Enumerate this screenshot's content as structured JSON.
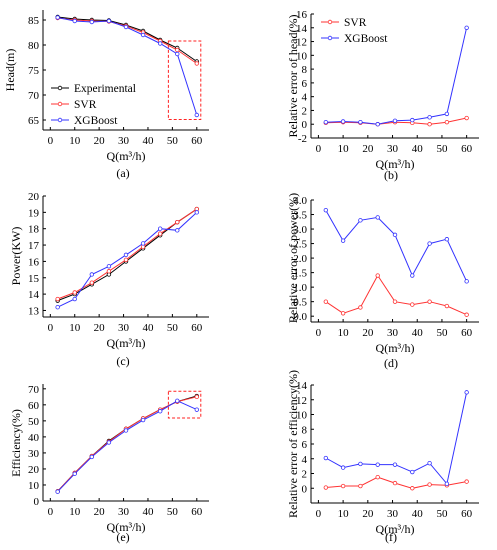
{
  "chart_data": [
    {
      "id": "a",
      "panel_label": "(a)",
      "type": "line",
      "xlabel": "Q(m³/h)",
      "ylabel": "Head(m)",
      "xlim": [
        -3,
        65
      ],
      "ylim": [
        63,
        87
      ],
      "xticks": [
        0,
        10,
        20,
        30,
        40,
        50,
        60
      ],
      "yticks": [
        65,
        70,
        75,
        80,
        85
      ],
      "legend": "lower-left",
      "zoom_box": {
        "x": [
          50,
          60
        ],
        "y": [
          65.5,
          80
        ]
      },
      "series": [
        {
          "name": "Experimental",
          "color": "#000000",
          "x": [
            3,
            10,
            17,
            24,
            31,
            38,
            45,
            52,
            60
          ],
          "y": [
            85.6,
            85.2,
            85.0,
            84.9,
            84.0,
            82.8,
            81.0,
            79.4,
            76.7
          ]
        },
        {
          "name": "SVR",
          "color": "#ff3333",
          "x": [
            3,
            10,
            17,
            24,
            31,
            38,
            45,
            52,
            60
          ],
          "y": [
            85.4,
            85.0,
            84.8,
            84.7,
            83.8,
            82.5,
            80.8,
            79.0,
            76.3
          ]
        },
        {
          "name": "XGBoost",
          "color": "#3333ff",
          "x": [
            3,
            10,
            17,
            24,
            31,
            38,
            45,
            52,
            60
          ],
          "y": [
            85.5,
            84.8,
            84.6,
            84.8,
            83.6,
            82.0,
            80.3,
            78.2,
            66.0
          ]
        }
      ]
    },
    {
      "id": "b",
      "panel_label": "(b)",
      "type": "line",
      "xlabel": "Q(m³/h)",
      "ylabel": "Relative error of head(%)",
      "xlim": [
        -3,
        65
      ],
      "ylim": [
        -2,
        16
      ],
      "xticks": [
        0,
        10,
        20,
        30,
        40,
        50,
        60
      ],
      "yticks": [
        -2,
        0,
        2,
        4,
        6,
        8,
        10,
        12,
        14,
        16
      ],
      "legend": "top-left",
      "series": [
        {
          "name": "SVR",
          "color": "#ff3333",
          "x": [
            3,
            10,
            17,
            24,
            31,
            38,
            45,
            52,
            60
          ],
          "y": [
            0.2,
            0.3,
            0.2,
            0.0,
            0.3,
            0.2,
            0.0,
            0.3,
            0.9
          ]
        },
        {
          "name": "XGBoost",
          "color": "#3333ff",
          "x": [
            3,
            10,
            17,
            24,
            31,
            38,
            45,
            52,
            60
          ],
          "y": [
            0.3,
            0.4,
            0.3,
            0.0,
            0.5,
            0.6,
            1.0,
            1.5,
            14.0
          ]
        }
      ]
    },
    {
      "id": "c",
      "panel_label": "(c)",
      "type": "line",
      "xlabel": "Q(m³/h)",
      "ylabel": "Power(KW)",
      "xlim": [
        -3,
        65
      ],
      "ylim": [
        12.6,
        20
      ],
      "xticks": [
        0,
        10,
        20,
        30,
        40,
        50,
        60
      ],
      "yticks": [
        13,
        14,
        15,
        16,
        17,
        18,
        19,
        20
      ],
      "series": [
        {
          "name": "Experimental",
          "color": "#000000",
          "x": [
            3,
            10,
            17,
            24,
            31,
            38,
            45,
            52,
            60
          ],
          "y": [
            13.6,
            14.0,
            14.6,
            15.2,
            16.0,
            16.8,
            17.6,
            18.4,
            19.2
          ]
        },
        {
          "name": "SVR",
          "color": "#ff3333",
          "x": [
            3,
            10,
            17,
            24,
            31,
            38,
            45,
            52,
            60
          ],
          "y": [
            13.7,
            14.1,
            14.7,
            15.4,
            16.1,
            16.9,
            17.7,
            18.4,
            19.2
          ]
        },
        {
          "name": "XGBoost",
          "color": "#3333ff",
          "x": [
            3,
            10,
            17,
            24,
            31,
            38,
            45,
            52,
            60
          ],
          "y": [
            13.2,
            13.7,
            15.2,
            15.7,
            16.4,
            17.1,
            18.0,
            17.9,
            19.0
          ]
        }
      ]
    },
    {
      "id": "d",
      "panel_label": "(d)",
      "type": "line",
      "xlabel": "Q(m³/h)",
      "ylabel": "Relative error of power(%)",
      "xlim": [
        -3,
        65
      ],
      "ylim": [
        -0.2,
        4.0
      ],
      "xticks": [
        0,
        10,
        20,
        30,
        40,
        50,
        60
      ],
      "yticks": [
        0.0,
        0.5,
        1.0,
        1.5,
        2.0,
        2.5,
        3.0,
        3.5,
        4.0
      ],
      "ytick_labels": [
        "0.0",
        "0.5",
        "1.0",
        "1.5",
        "2.0",
        "2.5",
        "3.0",
        "3.5",
        "4.0"
      ],
      "series": [
        {
          "name": "SVR",
          "color": "#ff3333",
          "x": [
            3,
            10,
            17,
            24,
            31,
            38,
            45,
            52,
            60
          ],
          "y": [
            0.5,
            0.1,
            0.3,
            1.4,
            0.5,
            0.4,
            0.5,
            0.35,
            0.05
          ]
        },
        {
          "name": "XGBoost",
          "color": "#3333ff",
          "x": [
            3,
            10,
            17,
            24,
            31,
            38,
            45,
            52,
            60
          ],
          "y": [
            3.65,
            2.6,
            3.3,
            3.4,
            2.8,
            1.4,
            2.5,
            2.65,
            1.2
          ]
        }
      ]
    },
    {
      "id": "e",
      "panel_label": "(e)",
      "type": "line",
      "xlabel": "Q(m³/h)",
      "ylabel": "Efficiency(%)",
      "xlim": [
        -3,
        65
      ],
      "ylim": [
        0,
        73
      ],
      "xticks": [
        0,
        10,
        20,
        30,
        40,
        50,
        60
      ],
      "yticks": [
        0,
        10,
        20,
        30,
        40,
        50,
        60,
        70
      ],
      "zoom_box": {
        "x": [
          50,
          60
        ],
        "y": [
          53,
          66
        ]
      },
      "series": [
        {
          "name": "Experimental",
          "color": "#000000",
          "x": [
            3,
            10,
            17,
            24,
            31,
            38,
            45,
            52,
            60
          ],
          "y": [
            6.0,
            17.5,
            28.0,
            37.5,
            45.0,
            51.5,
            57.0,
            62.0,
            65.5
          ]
        },
        {
          "name": "SVR",
          "color": "#ff3333",
          "x": [
            3,
            10,
            17,
            24,
            31,
            38,
            45,
            52,
            60
          ],
          "y": [
            6.0,
            17.5,
            28.0,
            37.0,
            45.0,
            51.5,
            57.0,
            62.0,
            65.0
          ]
        },
        {
          "name": "XGBoost",
          "color": "#3333ff",
          "x": [
            3,
            10,
            17,
            24,
            31,
            38,
            45,
            52,
            60
          ],
          "y": [
            5.8,
            17.0,
            27.5,
            36.5,
            44.0,
            50.5,
            56.0,
            62.5,
            57.0
          ]
        }
      ]
    },
    {
      "id": "f",
      "panel_label": "(f)",
      "type": "line",
      "xlabel": "Q(m³/h)",
      "ylabel": "Relative error of efficiency(%)",
      "xlim": [
        -3,
        65
      ],
      "ylim": [
        -2,
        14
      ],
      "xticks": [
        0,
        10,
        20,
        30,
        40,
        50,
        60
      ],
      "yticks": [
        0,
        2,
        4,
        6,
        8,
        10,
        12,
        14
      ],
      "series": [
        {
          "name": "SVR",
          "color": "#ff3333",
          "x": [
            3,
            10,
            17,
            24,
            31,
            38,
            45,
            52,
            60
          ],
          "y": [
            0.1,
            0.3,
            0.3,
            1.5,
            0.7,
            0.0,
            0.5,
            0.4,
            0.9
          ]
        },
        {
          "name": "XGBoost",
          "color": "#3333ff",
          "x": [
            3,
            10,
            17,
            24,
            31,
            38,
            45,
            52,
            60
          ],
          "y": [
            4.1,
            2.8,
            3.3,
            3.2,
            3.2,
            2.2,
            3.4,
            0.6,
            13.0
          ]
        }
      ]
    }
  ]
}
